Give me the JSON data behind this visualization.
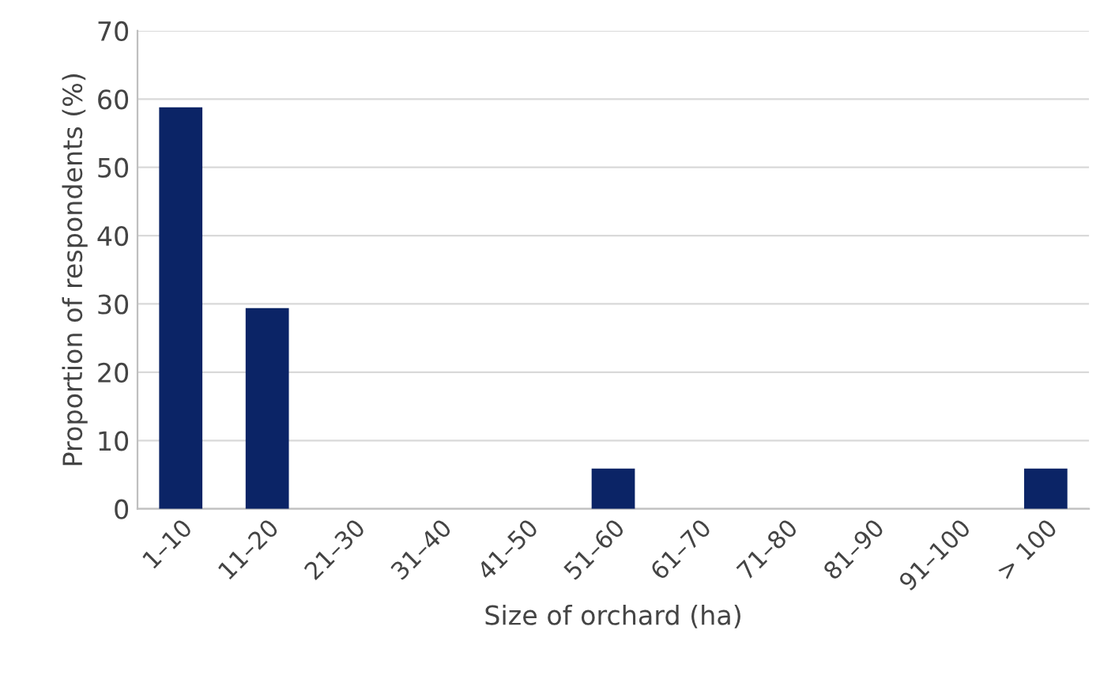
{
  "chart_data": {
    "type": "bar",
    "xlabel": "Size of orchard (ha)",
    "ylabel": "Proportion of respondents (%)",
    "categories": [
      "1–10",
      "11–20",
      "21–30",
      "31–40",
      "41–50",
      "51–60",
      "61–70",
      "71–80",
      "81–90",
      "91–100",
      "> 100"
    ],
    "values": [
      58.8,
      29.4,
      0,
      0,
      0,
      5.9,
      0,
      0,
      0,
      0,
      5.9
    ],
    "color": "#0b2466",
    "ylim": [
      0,
      70
    ],
    "yticks": [
      0,
      10,
      20,
      30,
      40,
      50,
      60,
      70
    ],
    "grid": "y",
    "legend": false
  }
}
